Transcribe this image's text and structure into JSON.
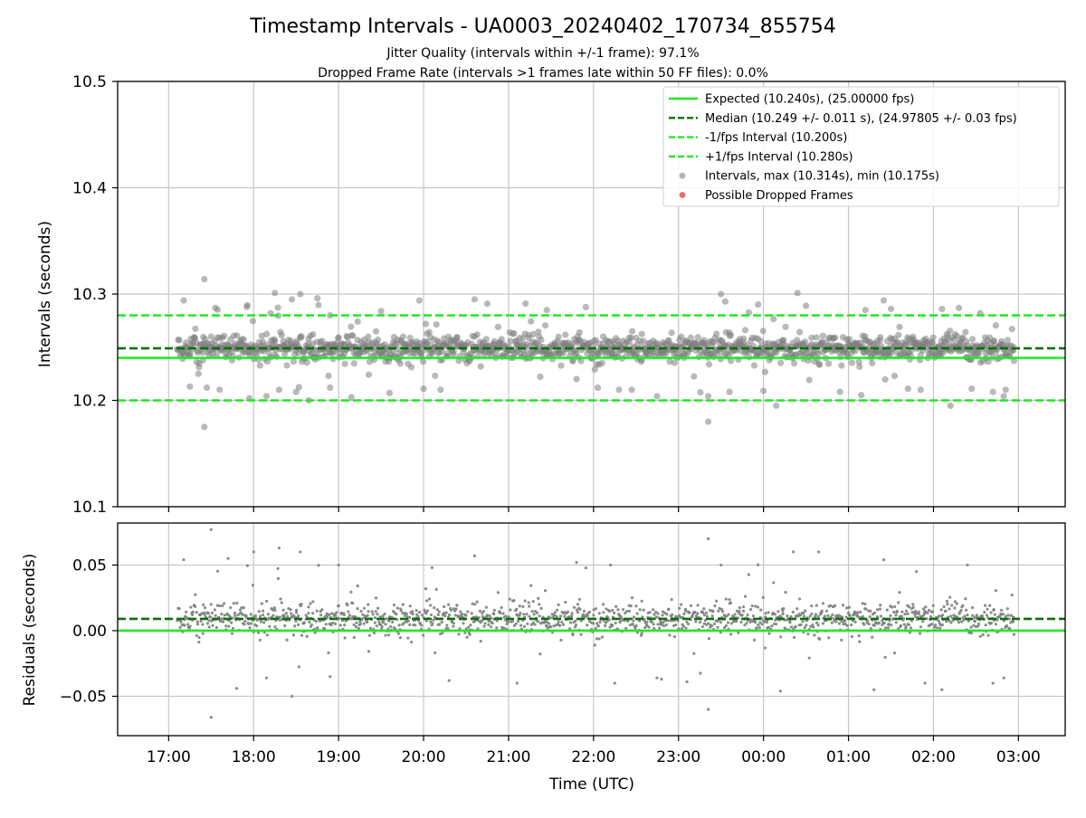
{
  "title": "Timestamp Intervals - UA0003_20240402_170734_855754",
  "subtitle_lines": [
    "Jitter Quality (intervals within +/-1 frame): 97.1%",
    "Dropped Frame Rate (intervals >1 frames late within 50 FF files): 0.0%"
  ],
  "colors": {
    "expected": "#22e722",
    "median": "#0c6e0c",
    "fps_bound": "#22e722",
    "points": "#808080",
    "dropped": "#f06a6a",
    "grid": "#c6c6c6",
    "axis": "#000000"
  },
  "chart_data": [
    {
      "id": "intervals",
      "type": "scatter",
      "xlabel": "",
      "ylabel": "Intervals (seconds)",
      "xlim": [
        -0.6,
        10.55
      ],
      "ylim": [
        10.1,
        10.5
      ],
      "yticks": [
        "10.1",
        "10.2",
        "10.3",
        "10.4",
        "10.5"
      ],
      "ytick_values": [
        10.1,
        10.2,
        10.3,
        10.4,
        10.5
      ],
      "xtick_values": [
        0,
        1,
        2,
        3,
        4,
        5,
        6,
        7,
        8,
        9,
        10
      ],
      "grid": true,
      "legend_position": "top-right",
      "legend": [
        {
          "label": "Expected (10.240s), (25.00000 fps)",
          "style": "solid",
          "color_key": "expected"
        },
        {
          "label": "Median (10.249 +/- 0.011 s), (24.97805 +/- 0.03 fps)",
          "style": "dashed",
          "color_key": "median"
        },
        {
          "label": "-1/fps Interval (10.200s)",
          "style": "dashed",
          "color_key": "fps_bound"
        },
        {
          "label": "+1/fps Interval (10.280s)",
          "style": "dashed",
          "color_key": "fps_bound"
        },
        {
          "label": "Intervals, max (10.314s), min (10.175s)",
          "style": "marker",
          "color_key": "points"
        },
        {
          "label": "Possible Dropped Frames",
          "style": "marker",
          "color_key": "dropped"
        }
      ],
      "hlines": [
        {
          "y": 10.24,
          "style": "solid",
          "color_key": "expected"
        },
        {
          "y": 10.249,
          "style": "dashed",
          "color_key": "median"
        },
        {
          "y": 10.2,
          "style": "dashed",
          "color_key": "fps_bound"
        },
        {
          "y": 10.28,
          "style": "dashed",
          "color_key": "fps_bound"
        }
      ],
      "series": [
        {
          "x_range": [
            0.1,
            9.95
          ],
          "center": 10.249,
          "spread": 0.011,
          "count": 1400,
          "points": [
            [
              3.6,
              10.295
            ],
            [
              3.75,
              10.291
            ],
            [
              4.2,
              10.291
            ],
            [
              4.45,
              10.285
            ],
            [
              1.9,
              10.28
            ],
            [
              1.2,
              10.282
            ],
            [
              0.55,
              10.287
            ],
            [
              0.92,
              10.288
            ],
            [
              1.25,
              10.301
            ],
            [
              1.45,
              10.295
            ],
            [
              1.55,
              10.3
            ],
            [
              1.75,
              10.296
            ],
            [
              7.4,
              10.301
            ],
            [
              7.5,
              10.289
            ],
            [
              8.2,
              10.285
            ],
            [
              8.5,
              10.286
            ],
            [
              6.5,
              10.3
            ],
            [
              6.55,
              10.293
            ],
            [
              2.5,
              10.284
            ],
            [
              2.95,
              10.294
            ],
            [
              9.1,
              10.286
            ],
            [
              9.3,
              10.287
            ],
            [
              9.55,
              10.282
            ],
            [
              0.25,
              10.213
            ],
            [
              0.35,
              10.225
            ],
            [
              0.45,
              10.212
            ],
            [
              0.6,
              10.21
            ],
            [
              0.95,
              10.202
            ],
            [
              1.3,
              10.21
            ],
            [
              1.5,
              10.208
            ],
            [
              1.65,
              10.2
            ],
            [
              1.9,
              10.212
            ],
            [
              2.15,
              10.203
            ],
            [
              2.6,
              10.207
            ],
            [
              3.0,
              10.211
            ],
            [
              3.2,
              10.21
            ],
            [
              4.8,
              10.22
            ],
            [
              5.05,
              10.212
            ],
            [
              5.3,
              10.21
            ],
            [
              6.35,
              10.204
            ],
            [
              6.6,
              10.208
            ],
            [
              7.0,
              10.209
            ],
            [
              7.15,
              10.195
            ],
            [
              7.9,
              10.208
            ],
            [
              8.15,
              10.205
            ],
            [
              8.7,
              10.211
            ],
            [
              8.85,
              10.21
            ],
            [
              9.2,
              10.195
            ],
            [
              9.45,
              10.211
            ],
            [
              9.7,
              10.208
            ],
            [
              9.85,
              10.21
            ],
            [
              5.45,
              10.21
            ]
          ],
          "max_point": [
            0.42,
            10.314
          ],
          "min_point": [
            0.42,
            10.175
          ],
          "low_point": [
            6.35,
            10.18
          ]
        }
      ]
    },
    {
      "id": "residuals",
      "type": "scatter",
      "xlabel": "Time (UTC)",
      "ylabel": "Residuals (seconds)",
      "xlim": [
        -0.6,
        10.55
      ],
      "ylim": [
        -0.08,
        0.082
      ],
      "yticks": [
        "−0.05",
        "0.00",
        "0.05"
      ],
      "ytick_values": [
        -0.05,
        0.0,
        0.05
      ],
      "xticks": [
        "17:00",
        "18:00",
        "19:00",
        "20:00",
        "21:00",
        "22:00",
        "23:00",
        "00:00",
        "01:00",
        "02:00",
        "03:00"
      ],
      "xtick_values": [
        0,
        1,
        2,
        3,
        4,
        5,
        6,
        7,
        8,
        9,
        10
      ],
      "grid": true,
      "hlines": [
        {
          "y": 0.0,
          "style": "solid",
          "color_key": "expected"
        },
        {
          "y": 0.009,
          "style": "dashed",
          "color_key": "median"
        }
      ],
      "series": [
        {
          "x_range": [
            0.1,
            9.95
          ],
          "center": 0.009,
          "spread": 0.011,
          "count": 1400,
          "points": [
            [
              0.5,
              0.077
            ],
            [
              0.5,
              -0.066
            ],
            [
              1.3,
              0.063
            ],
            [
              1.55,
              0.06
            ],
            [
              1.45,
              -0.05
            ],
            [
              6.35,
              0.07
            ],
            [
              6.35,
              -0.06
            ],
            [
              6.5,
              0.05
            ],
            [
              8.8,
              0.045
            ],
            [
              9.1,
              -0.045
            ],
            [
              0.7,
              0.055
            ],
            [
              1.0,
              0.06
            ],
            [
              2.0,
              0.05
            ],
            [
              3.1,
              0.048
            ],
            [
              3.6,
              0.057
            ],
            [
              4.8,
              0.052
            ],
            [
              5.2,
              0.05
            ],
            [
              7.35,
              0.06
            ],
            [
              7.65,
              0.06
            ],
            [
              9.4,
              0.05
            ],
            [
              0.8,
              -0.044
            ],
            [
              1.9,
              -0.035
            ],
            [
              3.3,
              -0.038
            ],
            [
              4.1,
              -0.04
            ],
            [
              5.25,
              -0.04
            ],
            [
              5.8,
              -0.037
            ],
            [
              6.1,
              -0.039
            ],
            [
              7.2,
              -0.046
            ],
            [
              8.3,
              -0.045
            ],
            [
              8.9,
              -0.04
            ],
            [
              9.7,
              -0.04
            ]
          ]
        }
      ]
    }
  ]
}
